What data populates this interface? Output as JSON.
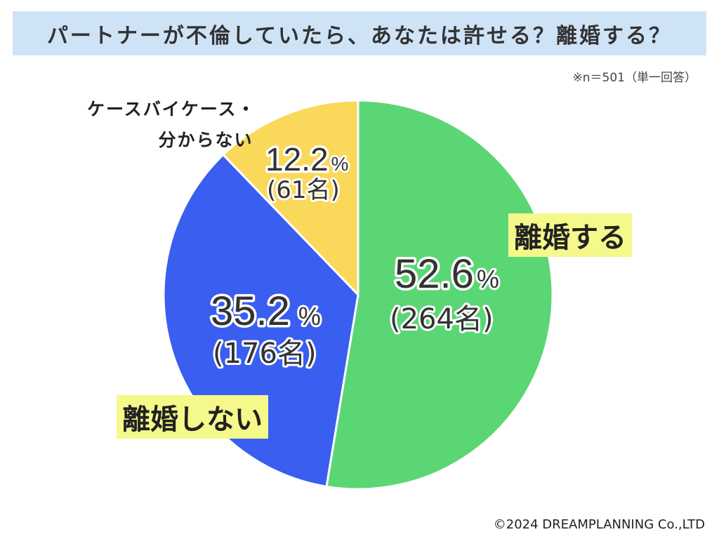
{
  "title": "パートナーが不倫していたら、あなたは許せる？離婚する？",
  "note": "※n＝501（単一回答）",
  "copyright": "©2024 DREAMPLANNING Co.,LTD",
  "chart_data": {
    "type": "pie",
    "title": "パートナーが不倫していたら、あなたは許せる？離婚する？",
    "slices": [
      {
        "label": "離婚する",
        "value": 52.6,
        "count": "(264名)",
        "percent_text": "52.6",
        "color": "#5bd675"
      },
      {
        "label": "離婚しない",
        "value": 35.2,
        "count": "(176名)",
        "percent_text": "35.2",
        "color": "#3a5ef0"
      },
      {
        "label_line1": "ケースバイケース・",
        "label_line2": "分からない",
        "value": 12.2,
        "count": "(61名)",
        "percent_text": "12.2",
        "color": "#fad85a"
      }
    ],
    "percent_sign": "%",
    "start_angle": "12 o'clock",
    "direction": "clockwise"
  }
}
